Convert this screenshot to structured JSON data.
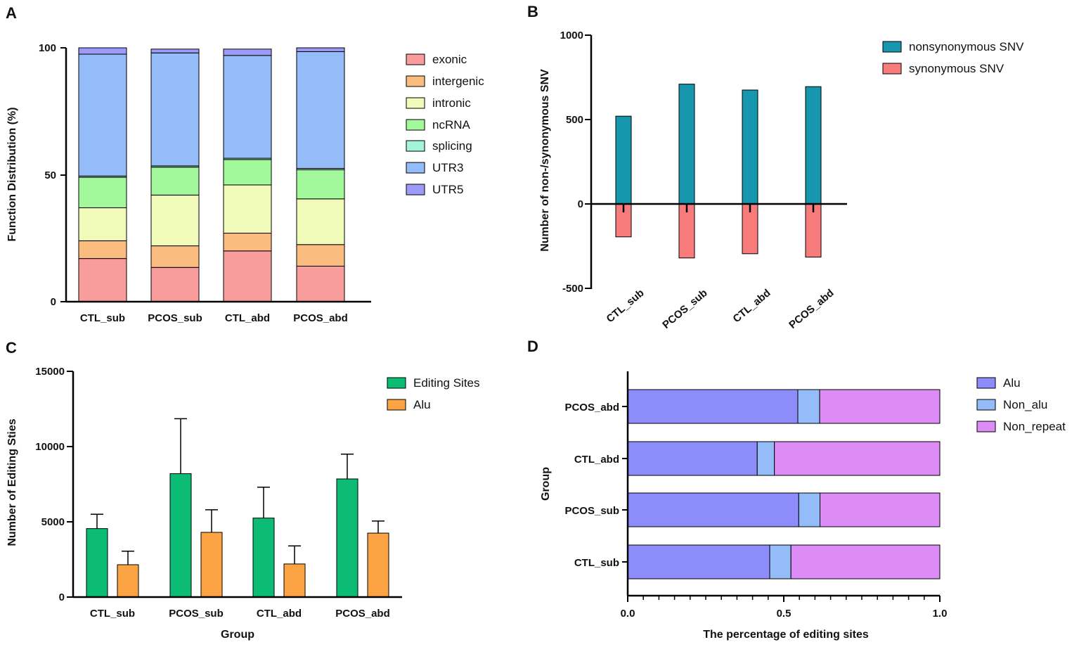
{
  "chart_data": [
    {
      "panel": "A",
      "type": "bar",
      "stacked": true,
      "ylabel": "Function Distribution (%)",
      "xlabel": "",
      "ylim": [
        0,
        100
      ],
      "yticks": [
        "0",
        "50",
        "100"
      ],
      "categories": [
        "CTL_sub",
        "PCOS_sub",
        "CTL_abd",
        "PCOS_abd"
      ],
      "series": [
        {
          "name": "exonic",
          "color": "#f89c9c",
          "values": [
            17,
            13.5,
            20,
            14
          ]
        },
        {
          "name": "intergenic",
          "color": "#fbbc80",
          "values": [
            7,
            8.5,
            7,
            8.5
          ]
        },
        {
          "name": "intronic",
          "color": "#f0fbba",
          "values": [
            13,
            20,
            19,
            18
          ]
        },
        {
          "name": "ncRNA",
          "color": "#a4f89c",
          "values": [
            12,
            11,
            10,
            11.5
          ]
        },
        {
          "name": "splicing",
          "color": "#a4f4d8",
          "values": [
            0.5,
            0.5,
            0.5,
            0.5
          ]
        },
        {
          "name": "UTR3",
          "color": "#94bcf8",
          "values": [
            48,
            44.5,
            40.5,
            46
          ]
        },
        {
          "name": "UTR5",
          "color": "#9c9cf8",
          "values": [
            2.5,
            1.5,
            2.5,
            1.5
          ]
        }
      ]
    },
    {
      "panel": "B",
      "type": "bar",
      "ylabel": "Number of non-/synonymous SNV",
      "xlabel": "",
      "ylim": [
        -500,
        1000
      ],
      "yticks": [
        "-500",
        "0",
        "500",
        "1000"
      ],
      "categories": [
        "CTL_sub",
        "PCOS_sub",
        "CTL_abd",
        "PCOS_abd"
      ],
      "series": [
        {
          "name": "nonsynonymous SNV",
          "color": "#1797ae",
          "values": [
            520,
            710,
            675,
            695
          ]
        },
        {
          "name": "synonymous SNV",
          "color": "#f87c7c",
          "values": [
            -195,
            -320,
            -295,
            -315
          ]
        }
      ]
    },
    {
      "panel": "C",
      "type": "bar",
      "ylabel": "Number of Editing Sties",
      "xlabel": "Group",
      "ylim": [
        0,
        15000
      ],
      "yticks": [
        "0",
        "5000",
        "10000",
        "15000"
      ],
      "categories": [
        "CTL_sub",
        "PCOS_sub",
        "CTL_abd",
        "PCOS_abd"
      ],
      "series": [
        {
          "name": "Editing Sites",
          "color": "#0cbc74",
          "values": [
            4550,
            8200,
            5250,
            7850
          ],
          "errors": [
            950,
            3650,
            2050,
            1650
          ]
        },
        {
          "name": "Alu",
          "color": "#fca444",
          "values": [
            2150,
            4300,
            2200,
            4250
          ],
          "errors": [
            900,
            1500,
            1200,
            800
          ]
        }
      ]
    },
    {
      "panel": "D",
      "type": "bar",
      "orientation": "horizontal",
      "stacked": true,
      "ylabel": "Group",
      "xlabel": "The percentage of editing sites",
      "xlim": [
        0,
        1
      ],
      "xticks": [
        "0.0",
        "0.5",
        "1.0"
      ],
      "categories": [
        "PCOS_abd",
        "CTL_abd",
        "PCOS_sub",
        "CTL_sub"
      ],
      "series": [
        {
          "name": "Alu",
          "color": "#8c8cfa",
          "values": [
            0.545,
            0.415,
            0.548,
            0.455
          ]
        },
        {
          "name": "Non_alu",
          "color": "#94bcf8",
          "values": [
            0.07,
            0.055,
            0.068,
            0.068
          ]
        },
        {
          "name": "Non_repeat",
          "color": "#dc8cf4",
          "values": [
            0.385,
            0.53,
            0.384,
            0.477
          ]
        }
      ]
    }
  ]
}
